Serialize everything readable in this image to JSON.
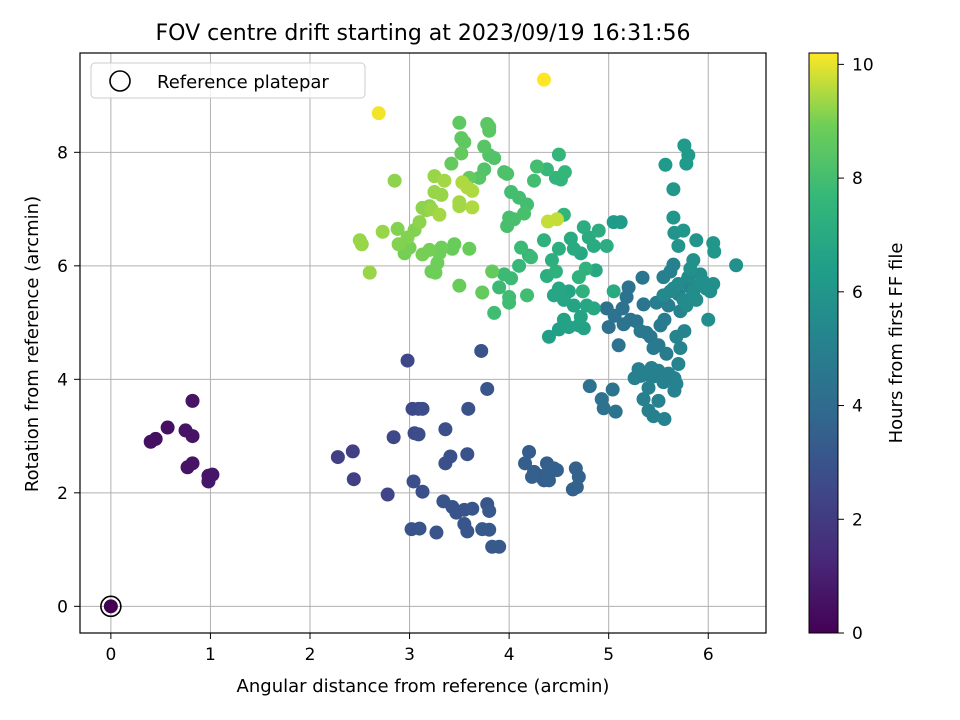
{
  "chart_data": {
    "type": "scatter",
    "title": "FOV centre drift starting at 2023/09/19 16:31:56",
    "xlabel": "Angular distance from reference (arcmin)",
    "ylabel": "Rotation from reference (arcmin)",
    "xlim": [
      -0.31,
      6.58
    ],
    "ylim": [
      -0.47,
      9.75
    ],
    "xticks": [
      0,
      1,
      2,
      3,
      4,
      5,
      6
    ],
    "yticks": [
      0,
      2,
      4,
      6,
      8
    ],
    "grid": true,
    "legend": {
      "location": "upper-left",
      "entries": [
        "Reference platepar"
      ]
    },
    "reference_point": {
      "x": 0,
      "y": 0
    },
    "colorbar": {
      "label": "Hours from first FF file",
      "range": [
        0,
        10.2
      ],
      "ticks": [
        0,
        2,
        4,
        6,
        8,
        10
      ],
      "colormap": "viridis"
    },
    "points": [
      [
        0.0,
        0.0,
        0.0
      ],
      [
        0.4,
        2.9,
        0.5
      ],
      [
        0.45,
        2.95,
        0.5
      ],
      [
        0.57,
        3.15,
        0.5
      ],
      [
        0.75,
        3.1,
        0.6
      ],
      [
        0.77,
        2.45,
        0.6
      ],
      [
        0.82,
        2.52,
        0.6
      ],
      [
        0.82,
        3.0,
        0.6
      ],
      [
        0.82,
        3.62,
        0.6
      ],
      [
        0.98,
        2.3,
        0.7
      ],
      [
        1.02,
        2.32,
        0.7
      ],
      [
        0.98,
        2.2,
        0.7
      ],
      [
        2.28,
        2.63,
        2.2
      ],
      [
        2.43,
        2.73,
        2.2
      ],
      [
        2.44,
        2.24,
        2.2
      ],
      [
        2.78,
        1.97,
        2.4
      ],
      [
        2.84,
        2.98,
        2.5
      ],
      [
        2.98,
        4.33,
        2.5
      ],
      [
        3.03,
        3.48,
        2.6
      ],
      [
        3.09,
        3.48,
        2.6
      ],
      [
        3.05,
        3.05,
        2.6
      ],
      [
        3.09,
        3.03,
        2.7
      ],
      [
        3.13,
        3.48,
        2.7
      ],
      [
        3.04,
        2.2,
        2.8
      ],
      [
        3.13,
        2.02,
        2.8
      ],
      [
        3.02,
        1.36,
        3.0
      ],
      [
        3.1,
        1.37,
        3.0
      ],
      [
        3.27,
        1.3,
        3.0
      ],
      [
        3.36,
        3.12,
        2.8
      ],
      [
        3.36,
        2.52,
        2.8
      ],
      [
        3.41,
        2.64,
        2.8
      ],
      [
        3.58,
        2.68,
        2.9
      ],
      [
        3.59,
        3.48,
        2.9
      ],
      [
        3.34,
        1.85,
        3.0
      ],
      [
        3.43,
        1.75,
        3.0
      ],
      [
        3.47,
        1.65,
        3.0
      ],
      [
        3.55,
        1.7,
        3.0
      ],
      [
        3.55,
        1.45,
        3.1
      ],
      [
        3.58,
        1.32,
        3.1
      ],
      [
        3.63,
        1.72,
        3.1
      ],
      [
        3.72,
        4.5,
        3.0
      ],
      [
        3.78,
        3.83,
        3.1
      ],
      [
        3.78,
        1.8,
        3.1
      ],
      [
        3.73,
        1.36,
        3.2
      ],
      [
        3.8,
        1.35,
        3.2
      ],
      [
        3.8,
        1.68,
        3.2
      ],
      [
        3.83,
        1.05,
        3.2
      ],
      [
        3.9,
        1.05,
        3.2
      ],
      [
        4.16,
        2.52,
        3.4
      ],
      [
        4.2,
        2.72,
        3.4
      ],
      [
        4.25,
        2.37,
        3.4
      ],
      [
        4.3,
        2.3,
        3.4
      ],
      [
        4.35,
        2.22,
        3.4
      ],
      [
        4.38,
        2.52,
        3.4
      ],
      [
        4.4,
        2.41,
        3.5
      ],
      [
        4.45,
        2.43,
        3.5
      ],
      [
        4.48,
        2.4,
        3.5
      ],
      [
        4.23,
        2.28,
        3.5
      ],
      [
        4.4,
        2.22,
        3.5
      ],
      [
        4.64,
        2.06,
        3.6
      ],
      [
        4.67,
        2.43,
        3.6
      ],
      [
        4.7,
        2.28,
        3.6
      ],
      [
        4.68,
        2.1,
        3.6
      ],
      [
        4.81,
        3.88,
        4.3
      ],
      [
        4.93,
        3.65,
        4.3
      ],
      [
        4.95,
        3.49,
        4.3
      ],
      [
        5.04,
        3.82,
        4.4
      ],
      [
        5.07,
        3.43,
        4.4
      ],
      [
        4.98,
        5.25,
        4.2
      ],
      [
        5.0,
        4.92,
        4.2
      ],
      [
        5.06,
        5.12,
        4.3
      ],
      [
        5.1,
        4.6,
        4.3
      ],
      [
        5.15,
        4.97,
        4.3
      ],
      [
        5.14,
        5.25,
        4.3
      ],
      [
        5.18,
        5.45,
        4.3
      ],
      [
        5.2,
        5.62,
        4.3
      ],
      [
        5.22,
        5.05,
        4.4
      ],
      [
        5.28,
        5.02,
        4.4
      ],
      [
        5.35,
        5.32,
        4.5
      ],
      [
        5.34,
        5.79,
        4.5
      ],
      [
        5.32,
        4.85,
        4.6
      ],
      [
        5.38,
        4.82,
        4.6
      ],
      [
        5.42,
        4.75,
        4.6
      ],
      [
        5.45,
        4.55,
        4.7
      ],
      [
        5.5,
        4.6,
        4.7
      ],
      [
        5.52,
        4.95,
        4.7
      ],
      [
        5.56,
        5.05,
        4.8
      ],
      [
        5.58,
        4.45,
        4.8
      ],
      [
        5.48,
        5.35,
        4.9
      ],
      [
        5.55,
        5.4,
        4.9
      ],
      [
        5.6,
        5.3,
        4.9
      ],
      [
        5.55,
        5.8,
        5.0
      ],
      [
        5.62,
        5.9,
        5.0
      ],
      [
        5.65,
        6.02,
        5.0
      ],
      [
        5.7,
        5.5,
        5.0
      ],
      [
        5.72,
        5.2,
        5.1
      ],
      [
        5.78,
        5.72,
        5.1
      ],
      [
        5.82,
        5.62,
        5.1
      ],
      [
        5.68,
        4.75,
        5.2
      ],
      [
        5.72,
        4.55,
        5.2
      ],
      [
        5.76,
        4.85,
        5.2
      ],
      [
        5.7,
        4.27,
        5.2
      ],
      [
        5.32,
        4.06,
        5.0
      ],
      [
        5.3,
        4.18,
        5.0
      ],
      [
        5.38,
        4.09,
        5.0
      ],
      [
        5.43,
        4.2,
        5.0
      ],
      [
        5.45,
        4.05,
        5.0
      ],
      [
        5.5,
        4.15,
        5.0
      ],
      [
        5.55,
        3.95,
        5.0
      ],
      [
        5.6,
        4.1,
        5.0
      ],
      [
        5.62,
        4.05,
        5.0
      ],
      [
        5.66,
        4.02,
        5.0
      ],
      [
        5.4,
        3.85,
        5.0
      ],
      [
        5.35,
        3.65,
        5.0
      ],
      [
        5.4,
        3.45,
        5.0
      ],
      [
        5.45,
        3.35,
        5.0
      ],
      [
        5.5,
        3.62,
        5.1
      ],
      [
        5.56,
        3.3,
        5.1
      ],
      [
        5.66,
        3.8,
        5.1
      ],
      [
        5.68,
        3.92,
        5.1
      ],
      [
        5.26,
        4.02,
        5.0
      ],
      [
        5.55,
        5.48,
        5.4
      ],
      [
        5.62,
        5.55,
        5.4
      ],
      [
        5.65,
        5.6,
        5.4
      ],
      [
        5.7,
        5.68,
        5.5
      ],
      [
        5.75,
        5.4,
        5.5
      ],
      [
        5.78,
        5.3,
        5.5
      ],
      [
        5.8,
        5.8,
        5.5
      ],
      [
        5.85,
        5.55,
        5.6
      ],
      [
        5.88,
        5.4,
        5.6
      ],
      [
        5.9,
        5.65,
        5.6
      ],
      [
        5.92,
        5.85,
        5.6
      ],
      [
        5.95,
        5.72,
        5.7
      ],
      [
        5.98,
        5.6,
        5.7
      ],
      [
        6.02,
        5.55,
        5.7
      ],
      [
        6.05,
        5.68,
        5.7
      ],
      [
        6.0,
        5.05,
        5.7
      ],
      [
        6.28,
        6.01,
        5.8
      ],
      [
        5.82,
        5.95,
        5.8
      ],
      [
        5.85,
        6.1,
        5.8
      ],
      [
        5.7,
        6.35,
        5.9
      ],
      [
        5.66,
        6.58,
        5.9
      ],
      [
        5.88,
        6.45,
        5.9
      ],
      [
        6.05,
        6.4,
        6.0
      ],
      [
        6.06,
        6.25,
        6.0
      ],
      [
        5.65,
        6.85,
        6.0
      ],
      [
        5.75,
        6.62,
        6.0
      ],
      [
        5.65,
        7.35,
        6.1
      ],
      [
        5.57,
        7.78,
        6.2
      ],
      [
        5.78,
        7.8,
        6.2
      ],
      [
        5.8,
        7.95,
        6.2
      ],
      [
        5.76,
        8.12,
        6.2
      ],
      [
        5.12,
        6.77,
        6.3
      ],
      [
        5.05,
        6.77,
        6.3
      ],
      [
        4.4,
        4.75,
        6.5
      ],
      [
        4.5,
        4.88,
        6.5
      ],
      [
        4.55,
        5.05,
        6.6
      ],
      [
        4.6,
        4.92,
        6.6
      ],
      [
        4.7,
        4.95,
        6.6
      ],
      [
        4.75,
        4.9,
        6.6
      ],
      [
        4.72,
        5.1,
        6.7
      ],
      [
        4.65,
        5.3,
        6.7
      ],
      [
        4.6,
        5.55,
        6.7
      ],
      [
        4.55,
        5.4,
        6.8
      ],
      [
        4.5,
        5.6,
        6.8
      ],
      [
        4.45,
        5.48,
        6.8
      ],
      [
        4.78,
        5.3,
        6.8
      ],
      [
        4.85,
        5.25,
        6.9
      ],
      [
        4.87,
        5.92,
        6.9
      ],
      [
        4.72,
        6.22,
        6.9
      ],
      [
        4.65,
        6.3,
        7.0
      ],
      [
        4.62,
        6.48,
        7.0
      ],
      [
        4.8,
        6.5,
        7.0
      ],
      [
        4.85,
        6.35,
        7.0
      ],
      [
        4.75,
        6.68,
        7.1
      ],
      [
        4.9,
        6.62,
        7.1
      ],
      [
        4.98,
        6.35,
        7.1
      ],
      [
        5.05,
        5.55,
        7.0
      ],
      [
        4.5,
        6.3,
        7.2
      ],
      [
        4.43,
        6.1,
        7.2
      ],
      [
        4.38,
        5.82,
        7.2
      ],
      [
        4.2,
        6.18,
        7.3
      ],
      [
        4.35,
        6.45,
        7.3
      ],
      [
        4.47,
        5.9,
        7.3
      ],
      [
        4.7,
        5.8,
        7.3
      ],
      [
        4.74,
        5.55,
        7.3
      ],
      [
        4.77,
        5.95,
        7.4
      ],
      [
        4.55,
        6.9,
        7.5
      ],
      [
        4.47,
        7.55,
        7.5
      ],
      [
        4.52,
        7.52,
        7.5
      ],
      [
        4.56,
        7.65,
        7.6
      ],
      [
        4.5,
        7.96,
        7.6
      ],
      [
        4.38,
        7.7,
        7.7
      ],
      [
        4.1,
        6.0,
        7.7
      ],
      [
        4.12,
        6.32,
        7.8
      ],
      [
        4.22,
        6.15,
        7.8
      ],
      [
        3.95,
        5.85,
        7.8
      ],
      [
        4.02,
        5.78,
        7.8
      ],
      [
        3.9,
        5.62,
        7.8
      ],
      [
        3.85,
        5.17,
        7.9
      ],
      [
        4.0,
        5.45,
        7.9
      ],
      [
        4.0,
        5.35,
        7.9
      ],
      [
        4.18,
        5.48,
        7.9
      ],
      [
        4.28,
        7.75,
        8.0
      ],
      [
        4.25,
        7.5,
        8.0
      ],
      [
        4.18,
        7.08,
        8.0
      ],
      [
        4.02,
        7.3,
        8.0
      ],
      [
        4.1,
        7.2,
        8.0
      ],
      [
        3.98,
        6.7,
        8.1
      ],
      [
        4.0,
        6.85,
        8.1
      ],
      [
        4.05,
        6.82,
        8.1
      ],
      [
        4.15,
        6.92,
        8.1
      ],
      [
        3.98,
        7.62,
        8.2
      ],
      [
        3.95,
        7.65,
        8.2
      ],
      [
        3.85,
        7.9,
        8.3
      ],
      [
        3.8,
        7.95,
        8.3
      ],
      [
        3.75,
        7.7,
        8.3
      ],
      [
        3.7,
        7.55,
        8.4
      ],
      [
        3.75,
        8.1,
        8.4
      ],
      [
        3.78,
        8.5,
        8.5
      ],
      [
        3.8,
        8.38,
        8.5
      ],
      [
        3.8,
        8.45,
        8.5
      ],
      [
        3.5,
        8.52,
        8.6
      ],
      [
        3.52,
        8.25,
        8.6
      ],
      [
        3.55,
        8.18,
        8.6
      ],
      [
        3.52,
        7.98,
        8.7
      ],
      [
        3.6,
        7.55,
        8.7
      ],
      [
        3.42,
        7.8,
        8.7
      ],
      [
        3.83,
        5.9,
        8.7
      ],
      [
        3.73,
        5.53,
        8.7
      ],
      [
        3.5,
        5.65,
        8.8
      ],
      [
        3.6,
        6.3,
        8.8
      ],
      [
        3.45,
        6.38,
        8.8
      ],
      [
        3.43,
        6.3,
        8.8
      ],
      [
        3.32,
        6.32,
        8.9
      ],
      [
        3.3,
        6.22,
        8.9
      ],
      [
        3.28,
        6.05,
        8.9
      ],
      [
        3.22,
        5.9,
        8.9
      ],
      [
        3.26,
        5.88,
        8.9
      ],
      [
        3.2,
        6.28,
        9.0
      ],
      [
        3.13,
        6.2,
        9.0
      ],
      [
        3.0,
        6.32,
        9.0
      ],
      [
        2.95,
        6.22,
        9.0
      ],
      [
        2.89,
        6.38,
        9.1
      ],
      [
        2.88,
        6.65,
        9.1
      ],
      [
        2.98,
        6.5,
        9.1
      ],
      [
        3.05,
        6.63,
        9.1
      ],
      [
        3.1,
        6.77,
        9.2
      ],
      [
        3.13,
        7.02,
        9.2
      ],
      [
        3.17,
        6.98,
        9.2
      ],
      [
        3.2,
        7.05,
        9.2
      ],
      [
        3.25,
        7.3,
        9.3
      ],
      [
        3.25,
        7.58,
        9.3
      ],
      [
        3.32,
        7.25,
        9.3
      ],
      [
        3.22,
        7.0,
        9.3
      ],
      [
        3.3,
        6.9,
        9.4
      ],
      [
        3.35,
        7.5,
        9.4
      ],
      [
        3.5,
        7.12,
        9.4
      ],
      [
        3.5,
        7.05,
        9.4
      ],
      [
        3.53,
        7.47,
        9.5
      ],
      [
        3.58,
        7.38,
        9.5
      ],
      [
        3.63,
        7.32,
        9.5
      ],
      [
        3.63,
        7.03,
        9.5
      ],
      [
        2.85,
        7.5,
        9.2
      ],
      [
        2.73,
        6.6,
        9.3
      ],
      [
        2.5,
        6.45,
        9.3
      ],
      [
        2.52,
        6.38,
        9.3
      ],
      [
        2.6,
        5.88,
        9.3
      ],
      [
        4.39,
        6.78,
        9.7
      ],
      [
        4.48,
        6.82,
        9.7
      ],
      [
        2.69,
        8.69,
        10.1
      ],
      [
        4.35,
        9.28,
        10.2
      ]
    ]
  }
}
